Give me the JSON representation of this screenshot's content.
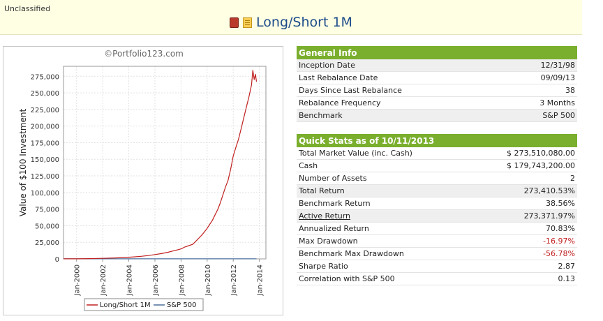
{
  "header": {
    "classification": "Unclassified",
    "title": "Long/Short 1M",
    "icons": [
      "book-icon",
      "notepad-icon"
    ]
  },
  "chart_panel": {
    "watermark": "©Portfolio123.com"
  },
  "chart_data": {
    "type": "line",
    "title": "",
    "xlabel": "",
    "ylabel": "Value of $100 Investment",
    "x_tick_labels": [
      "Jan-2000",
      "Jan-2002",
      "Jan-2004",
      "Jan-2006",
      "Jan-2008",
      "Jan-2010",
      "Jan-2012",
      "Jan-2014"
    ],
    "y_tick_labels": [
      "0",
      "25,000",
      "50,000",
      "75,000",
      "100,000",
      "125,000",
      "150,000",
      "175,000",
      "200,000",
      "225,000",
      "250,000",
      "275,000"
    ],
    "xlim": [
      1999.0,
      2014.5
    ],
    "ylim": [
      0,
      290000
    ],
    "grid": true,
    "legend_position": "bottom",
    "colors": {
      "Long/Short 1M": "#c02020",
      "S&P 500": "#4a6f9c"
    },
    "series": [
      {
        "name": "Long/Short 1M",
        "x": [
          1999.0,
          2000.0,
          2001.0,
          2002.0,
          2003.0,
          2004.0,
          2004.5,
          2005.0,
          2005.5,
          2006.0,
          2006.5,
          2007.0,
          2007.5,
          2008.0,
          2008.3,
          2008.6,
          2008.9,
          2009.0,
          2009.2,
          2009.4,
          2009.6,
          2009.8,
          2010.0,
          2010.2,
          2010.4,
          2010.6,
          2010.8,
          2011.0,
          2011.2,
          2011.4,
          2011.6,
          2011.8,
          2012.0,
          2012.2,
          2012.4,
          2012.6,
          2012.8,
          2013.0,
          2013.2,
          2013.4,
          2013.5,
          2013.6,
          2013.7,
          2013.78
        ],
        "values": [
          100,
          150,
          400,
          800,
          1500,
          2500,
          3200,
          4000,
          5000,
          6500,
          8000,
          10000,
          12500,
          15000,
          18000,
          20000,
          22000,
          24000,
          28000,
          32000,
          36000,
          41000,
          46000,
          52000,
          58000,
          66000,
          74000,
          84000,
          96000,
          108000,
          118000,
          135000,
          155000,
          168000,
          180000,
          196000,
          212000,
          228000,
          244000,
          262000,
          284000,
          270000,
          278000,
          267000
        ]
      },
      {
        "name": "S&P 500",
        "x": [
          1999.0,
          2013.78
        ],
        "values": [
          100,
          139
        ]
      }
    ]
  },
  "general_info": {
    "heading": "General Info",
    "rows": [
      {
        "label": "Inception Date",
        "value": "12/31/98"
      },
      {
        "label": "Last Rebalance Date",
        "value": "09/09/13"
      },
      {
        "label": "Days Since Last Rebalance",
        "value": "38"
      },
      {
        "label": "Rebalance Frequency",
        "value": "3 Months"
      },
      {
        "label": "Benchmark",
        "value": "S&P 500"
      }
    ]
  },
  "quick_stats": {
    "heading": "Quick Stats as of 10/11/2013",
    "rows": [
      {
        "label": "Total Market Value (inc. Cash)",
        "value": "$ 273,510,080.00"
      },
      {
        "label": "Cash",
        "value": "$ 179,743,200.00"
      },
      {
        "label": "Number of Assets",
        "value": "2"
      },
      {
        "label": "Total Return",
        "value": "273,410.53%"
      },
      {
        "label": "Benchmark Return",
        "value": "38.56%"
      },
      {
        "label": "Active Return",
        "value": "273,371.97%"
      },
      {
        "label": "Annualized Return",
        "value": "70.83%"
      },
      {
        "label": "Max Drawdown",
        "value": "-16.97%"
      },
      {
        "label": "Benchmark Max Drawdown",
        "value": "-56.78%"
      },
      {
        "label": "Sharpe Ratio",
        "value": "2.87"
      },
      {
        "label": "Correlation with S&P 500",
        "value": "0.13"
      }
    ]
  }
}
